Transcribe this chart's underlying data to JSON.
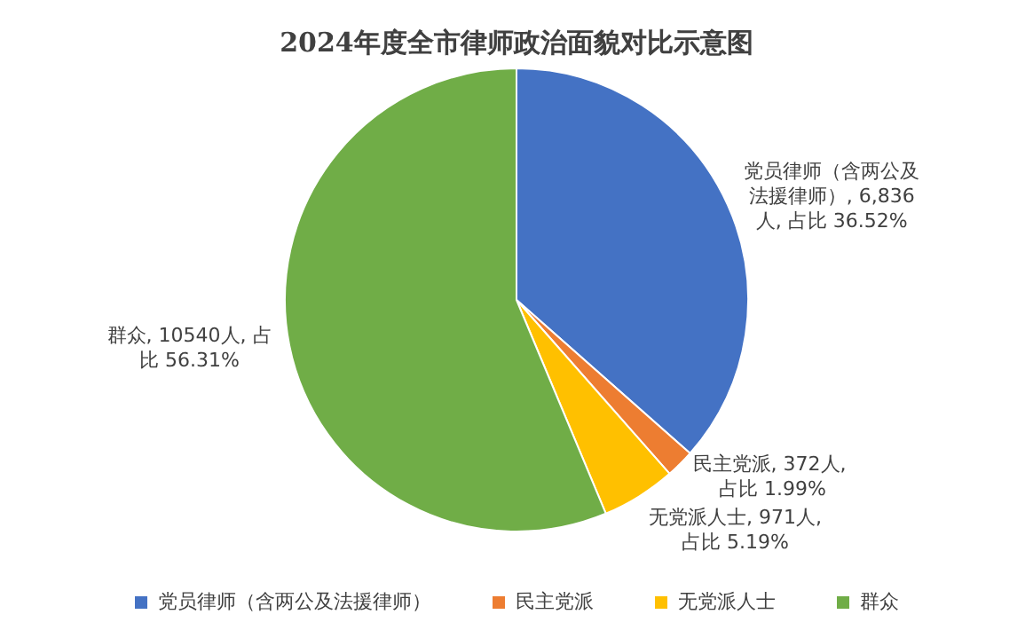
{
  "chart_data": {
    "type": "pie",
    "title": "2024年度全市律师政治面貌对比示意图",
    "categories": [
      "党员律师（含两公及法援律师）",
      "民主党派",
      "无党派人士",
      "群众"
    ],
    "values": [
      6836,
      372,
      971,
      10540
    ],
    "colors": [
      "#4472c4",
      "#ed7d31",
      "#ffc000",
      "#70ad47"
    ],
    "value_labels": [
      "党员律师（含两公及法援律师）, 6,836人, 占比 36.52%",
      "民主党派, 372人, 占比 1.99%",
      "无党派人士, 971人, 占比 5.19%",
      "群众, 10540人, 占比 56.31%"
    ],
    "legend": "bottom"
  }
}
